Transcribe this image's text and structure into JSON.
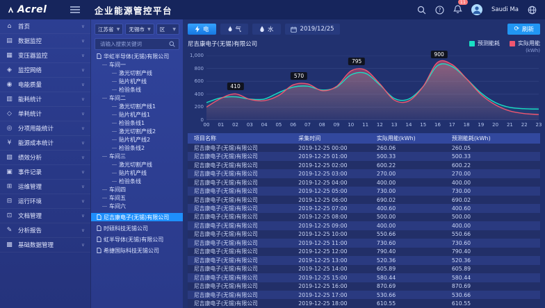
{
  "header": {
    "logo_text": "Acrel",
    "title": "企业能源管控平台",
    "notification_count": "11",
    "user_name": "Saudi Ma"
  },
  "sidebar": {
    "items": [
      {
        "label": "首页",
        "icon": "home-icon",
        "glyph": "⌂"
      },
      {
        "label": "数据监控",
        "icon": "data-monitor-icon",
        "glyph": "▤"
      },
      {
        "label": "变压器监控",
        "icon": "transformer-monitor-icon",
        "glyph": "▦"
      },
      {
        "label": "监控网络",
        "icon": "monitor-network-icon",
        "glyph": "◈"
      },
      {
        "label": "电能质量",
        "icon": "power-quality-icon",
        "glyph": "◉"
      },
      {
        "label": "能耗统计",
        "icon": "energy-consumption-icon",
        "glyph": "▥"
      },
      {
        "label": "单耗统计",
        "icon": "unit-consumption-icon",
        "glyph": "◇"
      },
      {
        "label": "分项用能统计",
        "icon": "subitem-energy-icon",
        "glyph": "◎"
      },
      {
        "label": "能源成本统计",
        "icon": "energy-cost-icon",
        "glyph": "¥"
      },
      {
        "label": "绩效分析",
        "icon": "performance-analysis-icon",
        "glyph": "▧"
      },
      {
        "label": "事件记录",
        "icon": "event-log-icon",
        "glyph": "▣"
      },
      {
        "label": "运维管理",
        "icon": "operation-maintenance-icon",
        "glyph": "⊞"
      },
      {
        "label": "运行环境",
        "icon": "running-environment-icon",
        "glyph": "⊟"
      },
      {
        "label": "文档管理",
        "icon": "document-management-icon",
        "glyph": "⊡"
      },
      {
        "label": "分析报告",
        "icon": "analysis-report-icon",
        "glyph": "✎"
      },
      {
        "label": "基础数据管理",
        "icon": "basic-data-management-icon",
        "glyph": "▩"
      }
    ]
  },
  "tree_panel": {
    "region_selects": [
      "江苏省",
      "无锡市",
      "区"
    ],
    "search_placeholder": "请输入搜索关键词",
    "nodes": [
      {
        "label": "华虹半导体(无锡)有限公司",
        "level": 0,
        "company": true
      },
      {
        "label": "车间一",
        "level": 1
      },
      {
        "label": "激光切割产线",
        "level": 2
      },
      {
        "label": "贴片机产线",
        "level": 2
      },
      {
        "label": "检验条线",
        "level": 2
      },
      {
        "label": "车间二",
        "level": 1
      },
      {
        "label": "激光切割产线1",
        "level": 2
      },
      {
        "label": "贴片机产线1",
        "level": 2
      },
      {
        "label": "检验条线1",
        "level": 2
      },
      {
        "label": "激光切割产线2",
        "level": 2
      },
      {
        "label": "贴片机产线2",
        "level": 2
      },
      {
        "label": "检验条线2",
        "level": 2
      },
      {
        "label": "车间三",
        "level": 1
      },
      {
        "label": "激光切割产线",
        "level": 2
      },
      {
        "label": "贴片机产线",
        "level": 2
      },
      {
        "label": "检验条线",
        "level": 2
      },
      {
        "label": "车间四",
        "level": 1
      },
      {
        "label": "车间五",
        "level": 1
      },
      {
        "label": "车间六",
        "level": 1
      },
      {
        "label": "尼吉康电子(无锡)有限公司",
        "level": 0,
        "company": true,
        "selected": true,
        "spaced": true
      },
      {
        "label": "时硕科技无锡公司",
        "level": 0,
        "company": true,
        "spaced": true
      },
      {
        "label": "虹半导体(无锡)有限公司",
        "level": 0,
        "company": true,
        "spaced": true
      },
      {
        "label": "希捷国际科技无锡公司",
        "level": 0,
        "company": true,
        "spaced": true
      }
    ]
  },
  "toolbar": {
    "tabs": [
      {
        "label": "电",
        "icon": "lightning-icon",
        "active": true
      },
      {
        "label": "气",
        "icon": "flame-icon",
        "active": false
      },
      {
        "label": "水",
        "icon": "water-drop-icon",
        "active": false
      }
    ],
    "date": "2019/12/25",
    "refresh_label": "刷新"
  },
  "chart_data": {
    "type": "area",
    "title": "尼吉康电子(无锡)有限公司",
    "unit": "(kWh)",
    "legend_position": "top-right",
    "grid": true,
    "x": [
      "00",
      "01",
      "02",
      "03",
      "04",
      "05",
      "06",
      "07",
      "08",
      "09",
      "10",
      "11",
      "12",
      "13",
      "14",
      "15",
      "16",
      "17",
      "18",
      "19",
      "20",
      "21",
      "22",
      "23"
    ],
    "xlabel": "",
    "ylabel": "",
    "ylim": [
      0,
      1000
    ],
    "yticks": [
      "0",
      "200",
      "400",
      "600",
      "800",
      "1,000"
    ],
    "series": [
      {
        "name": "预测能耗",
        "color": "#19e0c4",
        "values": [
          270,
          345,
          360,
          325,
          325,
          425,
          510,
          525,
          465,
          510,
          700,
          725,
          545,
          335,
          325,
          520,
          845,
          830,
          640,
          420,
          270,
          195,
          175,
          170
        ]
      },
      {
        "name": "实际用能",
        "color": "#ef5670",
        "values": [
          200,
          335,
          405,
          320,
          300,
          380,
          545,
          560,
          455,
          520,
          760,
          775,
          560,
          310,
          295,
          520,
          895,
          860,
          640,
          395,
          235,
          140,
          100,
          85
        ]
      }
    ],
    "point_labels": [
      {
        "x": 2,
        "value": 410
      },
      {
        "x": 6.4,
        "value": 570
      },
      {
        "x": 10.4,
        "value": 795
      },
      {
        "x": 16.1,
        "value": 900
      }
    ]
  },
  "table": {
    "project": "尼吉康电子(无锡)有限公司",
    "headers": [
      "项目名称",
      "采集时间",
      "实际用能(kWh)",
      "预测能耗(kWh)"
    ],
    "rows": [
      [
        "2019-12-25 00:00",
        "260.06",
        "260.05"
      ],
      [
        "2019-12-25 01:00",
        "500.33",
        "500.33"
      ],
      [
        "2019-12-25 02:00",
        "600.22",
        "600.22"
      ],
      [
        "2019-12-25 03:00",
        "270.00",
        "270.00"
      ],
      [
        "2019-12-25 04:00",
        "400.00",
        "400.00"
      ],
      [
        "2019-12-25 05:00",
        "730.00",
        "730.00"
      ],
      [
        "2019-12-25 06:00",
        "690.02",
        "690.02"
      ],
      [
        "2019-12-25 07:00",
        "400.60",
        "400.60"
      ],
      [
        "2019-12-25 08:00",
        "500.00",
        "500.00"
      ],
      [
        "2019-12-25 09:00",
        "400.00",
        "400.00"
      ],
      [
        "2019-12-25 10:00",
        "550.66",
        "550.66"
      ],
      [
        "2019-12-25 11:00",
        "730.60",
        "730.60"
      ],
      [
        "2019-12-25 12:00",
        "790.40",
        "790.40"
      ],
      [
        "2019-12-25 13:00",
        "520.36",
        "520.36"
      ],
      [
        "2019-12-25 14:00",
        "605.89",
        "605.89"
      ],
      [
        "2019-12-25 15:00",
        "580.44",
        "580.44"
      ],
      [
        "2019-12-25 16:00",
        "870.69",
        "870.69"
      ],
      [
        "2019-12-25 17:00",
        "530.66",
        "530.66"
      ],
      [
        "2019-12-25 18:00",
        "610.55",
        "610.55"
      ]
    ]
  }
}
